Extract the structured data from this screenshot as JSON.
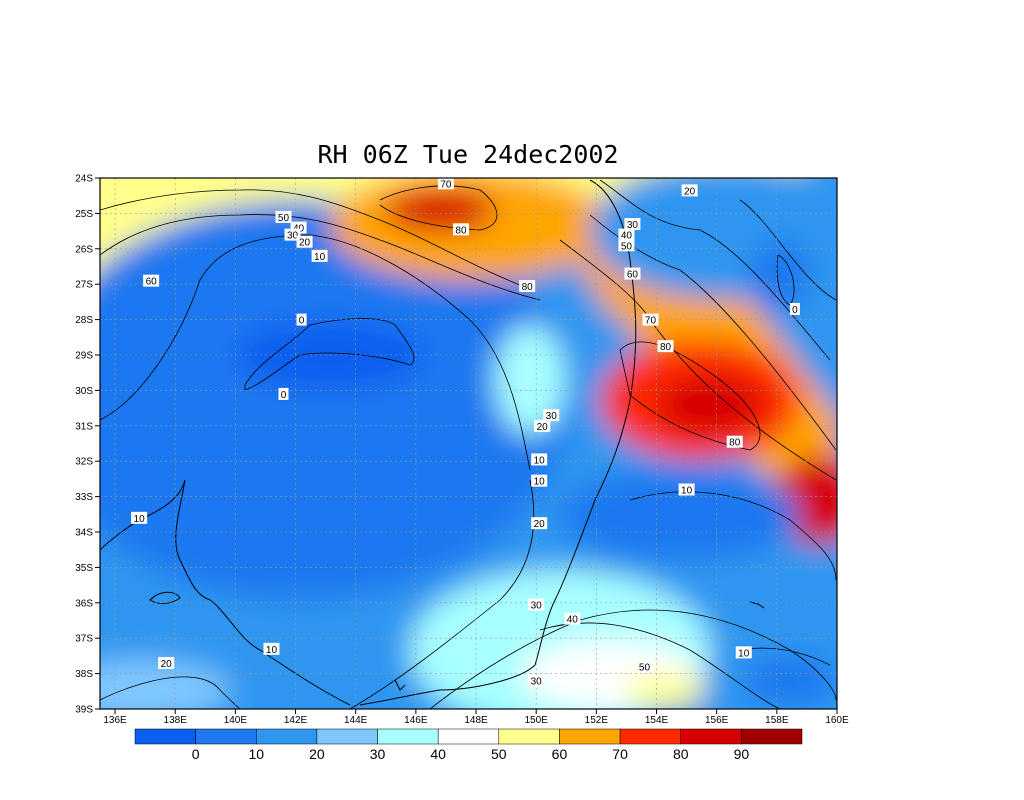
{
  "title": "RH 06Z Tue 24dec2002",
  "chart_data": {
    "type": "heatmap",
    "title": "RH 06Z Tue 24dec2002",
    "x_ticks": [
      "136E",
      "138E",
      "140E",
      "142E",
      "144E",
      "146E",
      "148E",
      "150E",
      "152E",
      "154E",
      "156E",
      "158E",
      "160E"
    ],
    "y_ticks": [
      "24S",
      "25S",
      "26S",
      "27S",
      "28S",
      "29S",
      "30S",
      "31S",
      "32S",
      "33S",
      "34S",
      "35S",
      "36S",
      "37S",
      "38S",
      "39S"
    ],
    "lon_range": [
      135.5,
      160
    ],
    "lat_range": [
      -39,
      -24
    ],
    "grid": true,
    "colorbar": {
      "colors": [
        "#0b5ff0",
        "#1e78f0",
        "#2f96f0",
        "#7fc8ff",
        "#a8ffff",
        "#ffffff",
        "#ffff8c",
        "#ffa500",
        "#ff2a00",
        "#d70000",
        "#a00000"
      ],
      "labels": [
        "0",
        "10",
        "20",
        "30",
        "40",
        "50",
        "60",
        "70",
        "80",
        "90"
      ]
    },
    "contour_labels": [
      {
        "text": "70",
        "lon": 147.0,
        "lat": -24.15
      },
      {
        "text": "80",
        "lon": 147.5,
        "lat": -25.45
      },
      {
        "text": "50",
        "lon": 141.6,
        "lat": -25.1
      },
      {
        "text": "40",
        "lon": 142.1,
        "lat": -25.4
      },
      {
        "text": "30",
        "lon": 141.9,
        "lat": -25.6
      },
      {
        "text": "20",
        "lon": 142.3,
        "lat": -25.8
      },
      {
        "text": "10",
        "lon": 142.8,
        "lat": -26.2
      },
      {
        "text": "60",
        "lon": 137.2,
        "lat": -26.9
      },
      {
        "text": "0",
        "lon": 142.2,
        "lat": -28.0
      },
      {
        "text": "0",
        "lon": 141.6,
        "lat": -30.1
      },
      {
        "text": "80",
        "lon": 149.7,
        "lat": -27.05
      },
      {
        "text": "20",
        "lon": 155.1,
        "lat": -24.35
      },
      {
        "text": "30",
        "lon": 153.2,
        "lat": -25.3
      },
      {
        "text": "40",
        "lon": 153.0,
        "lat": -25.6
      },
      {
        "text": "50",
        "lon": 153.0,
        "lat": -25.9
      },
      {
        "text": "60",
        "lon": 153.2,
        "lat": -26.7
      },
      {
        "text": "70",
        "lon": 153.8,
        "lat": -28.0
      },
      {
        "text": "80",
        "lon": 154.3,
        "lat": -28.75
      },
      {
        "text": "0",
        "lon": 158.6,
        "lat": -27.7
      },
      {
        "text": "30",
        "lon": 150.5,
        "lat": -30.7
      },
      {
        "text": "20",
        "lon": 150.2,
        "lat": -31.0
      },
      {
        "text": "10",
        "lon": 150.1,
        "lat": -31.95
      },
      {
        "text": "10",
        "lon": 150.1,
        "lat": -32.55
      },
      {
        "text": "80",
        "lon": 156.6,
        "lat": -31.45
      },
      {
        "text": "10",
        "lon": 155.0,
        "lat": -32.8
      },
      {
        "text": "20",
        "lon": 150.1,
        "lat": -33.75
      },
      {
        "text": "10",
        "lon": 136.8,
        "lat": -33.6
      },
      {
        "text": "30",
        "lon": 150.0,
        "lat": -36.05
      },
      {
        "text": "40",
        "lon": 151.2,
        "lat": -36.45
      },
      {
        "text": "50",
        "lon": 153.6,
        "lat": -37.8
      },
      {
        "text": "30",
        "lon": 150.0,
        "lat": -38.2
      },
      {
        "text": "10",
        "lon": 141.2,
        "lat": -37.3
      },
      {
        "text": "10",
        "lon": 156.9,
        "lat": -37.4
      },
      {
        "text": "20",
        "lon": 137.7,
        "lat": -37.7
      }
    ]
  }
}
